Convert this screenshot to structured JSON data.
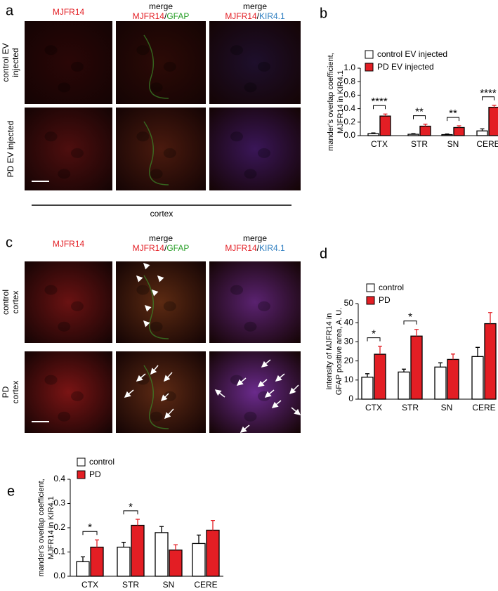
{
  "panel_a": {
    "letter": "a",
    "columns": [
      {
        "parts": [
          "MJFR14"
        ]
      },
      {
        "top": "merge",
        "parts": [
          "MJFR14",
          "/",
          "GFAP"
        ]
      },
      {
        "top": "merge",
        "parts": [
          "MJFR14",
          "/",
          "KIR4.1"
        ]
      }
    ],
    "rows": [
      [
        "control EV",
        "injected"
      ],
      [
        "PD EV injected"
      ]
    ],
    "caption": "cortex"
  },
  "panel_c": {
    "letter": "c",
    "columns": [
      {
        "parts": [
          "MJFR14"
        ]
      },
      {
        "top": "merge",
        "parts": [
          "MJFR14",
          "/",
          "GFAP"
        ]
      },
      {
        "top": "merge",
        "parts": [
          "MJFR14",
          "/",
          "KIR4.1"
        ]
      }
    ],
    "rows": [
      [
        "control",
        "cortex"
      ],
      [
        "PD",
        "cortex"
      ]
    ]
  },
  "chart_data": [
    {
      "type": "bar",
      "letter": "b",
      "ylabel": [
        "mander's overlap coefficient,",
        "MJFR14 in KIR4.1"
      ],
      "categories": [
        "CTX",
        "STR",
        "SN",
        "CERE"
      ],
      "series": [
        {
          "name": "control EV injected",
          "color": "#ffffff",
          "values": [
            0.03,
            0.02,
            0.015,
            0.07
          ],
          "errors": [
            0.01,
            0.01,
            0.01,
            0.03
          ]
        },
        {
          "name": "PD EV injected",
          "color": "#e31e24",
          "values": [
            0.29,
            0.14,
            0.12,
            0.42
          ],
          "errors": [
            0.03,
            0.03,
            0.025,
            0.03
          ]
        }
      ],
      "significance": [
        "****",
        "**",
        "**",
        "****"
      ],
      "ylim": [
        0,
        1.0
      ],
      "yticks": [
        {
          "value": 0,
          "label": "0.0"
        },
        0.2,
        0.4,
        0.6,
        0.8,
        {
          "value": 1.0,
          "label": "1.0"
        }
      ],
      "legend": "upper left"
    },
    {
      "type": "bar",
      "letter": "d",
      "ylabel": [
        "intensity of MJFR14 in",
        "GFAP positive area, A. U."
      ],
      "categories": [
        "CTX",
        "STR",
        "SN",
        "CERE"
      ],
      "series": [
        {
          "name": "control",
          "color": "#ffffff",
          "values": [
            11.5,
            14.2,
            16.8,
            22.3
          ],
          "errors": [
            1.8,
            1.5,
            2.2,
            4.8
          ]
        },
        {
          "name": "PD",
          "color": "#e31e24",
          "values": [
            23.5,
            33,
            20.8,
            39.5
          ],
          "errors": [
            4.2,
            3.5,
            2.8,
            5.8
          ]
        }
      ],
      "significance": [
        "*",
        "*",
        null,
        null
      ],
      "ylim": [
        0,
        50
      ],
      "yticks": [
        0,
        10,
        20,
        30,
        40,
        50
      ],
      "legend": "upper left"
    },
    {
      "type": "bar",
      "letter": "e",
      "ylabel": [
        "mander's overlap coefficient,",
        "MJFR14 in KIR4.1"
      ],
      "categories": [
        "CTX",
        "STR",
        "SN",
        "CERE"
      ],
      "series": [
        {
          "name": "control",
          "color": "#ffffff",
          "values": [
            0.06,
            0.12,
            0.18,
            0.135
          ],
          "errors": [
            0.02,
            0.02,
            0.025,
            0.035
          ]
        },
        {
          "name": "PD",
          "color": "#e31e24",
          "values": [
            0.12,
            0.21,
            0.108,
            0.19
          ],
          "errors": [
            0.03,
            0.025,
            0.022,
            0.04
          ]
        }
      ],
      "significance": [
        "*",
        "*",
        null,
        null
      ],
      "ylim": [
        0,
        0.4
      ],
      "yticks": [
        {
          "value": 0,
          "label": "0.0"
        },
        0.1,
        0.2,
        0.3,
        0.4
      ],
      "legend": "upper left"
    }
  ]
}
